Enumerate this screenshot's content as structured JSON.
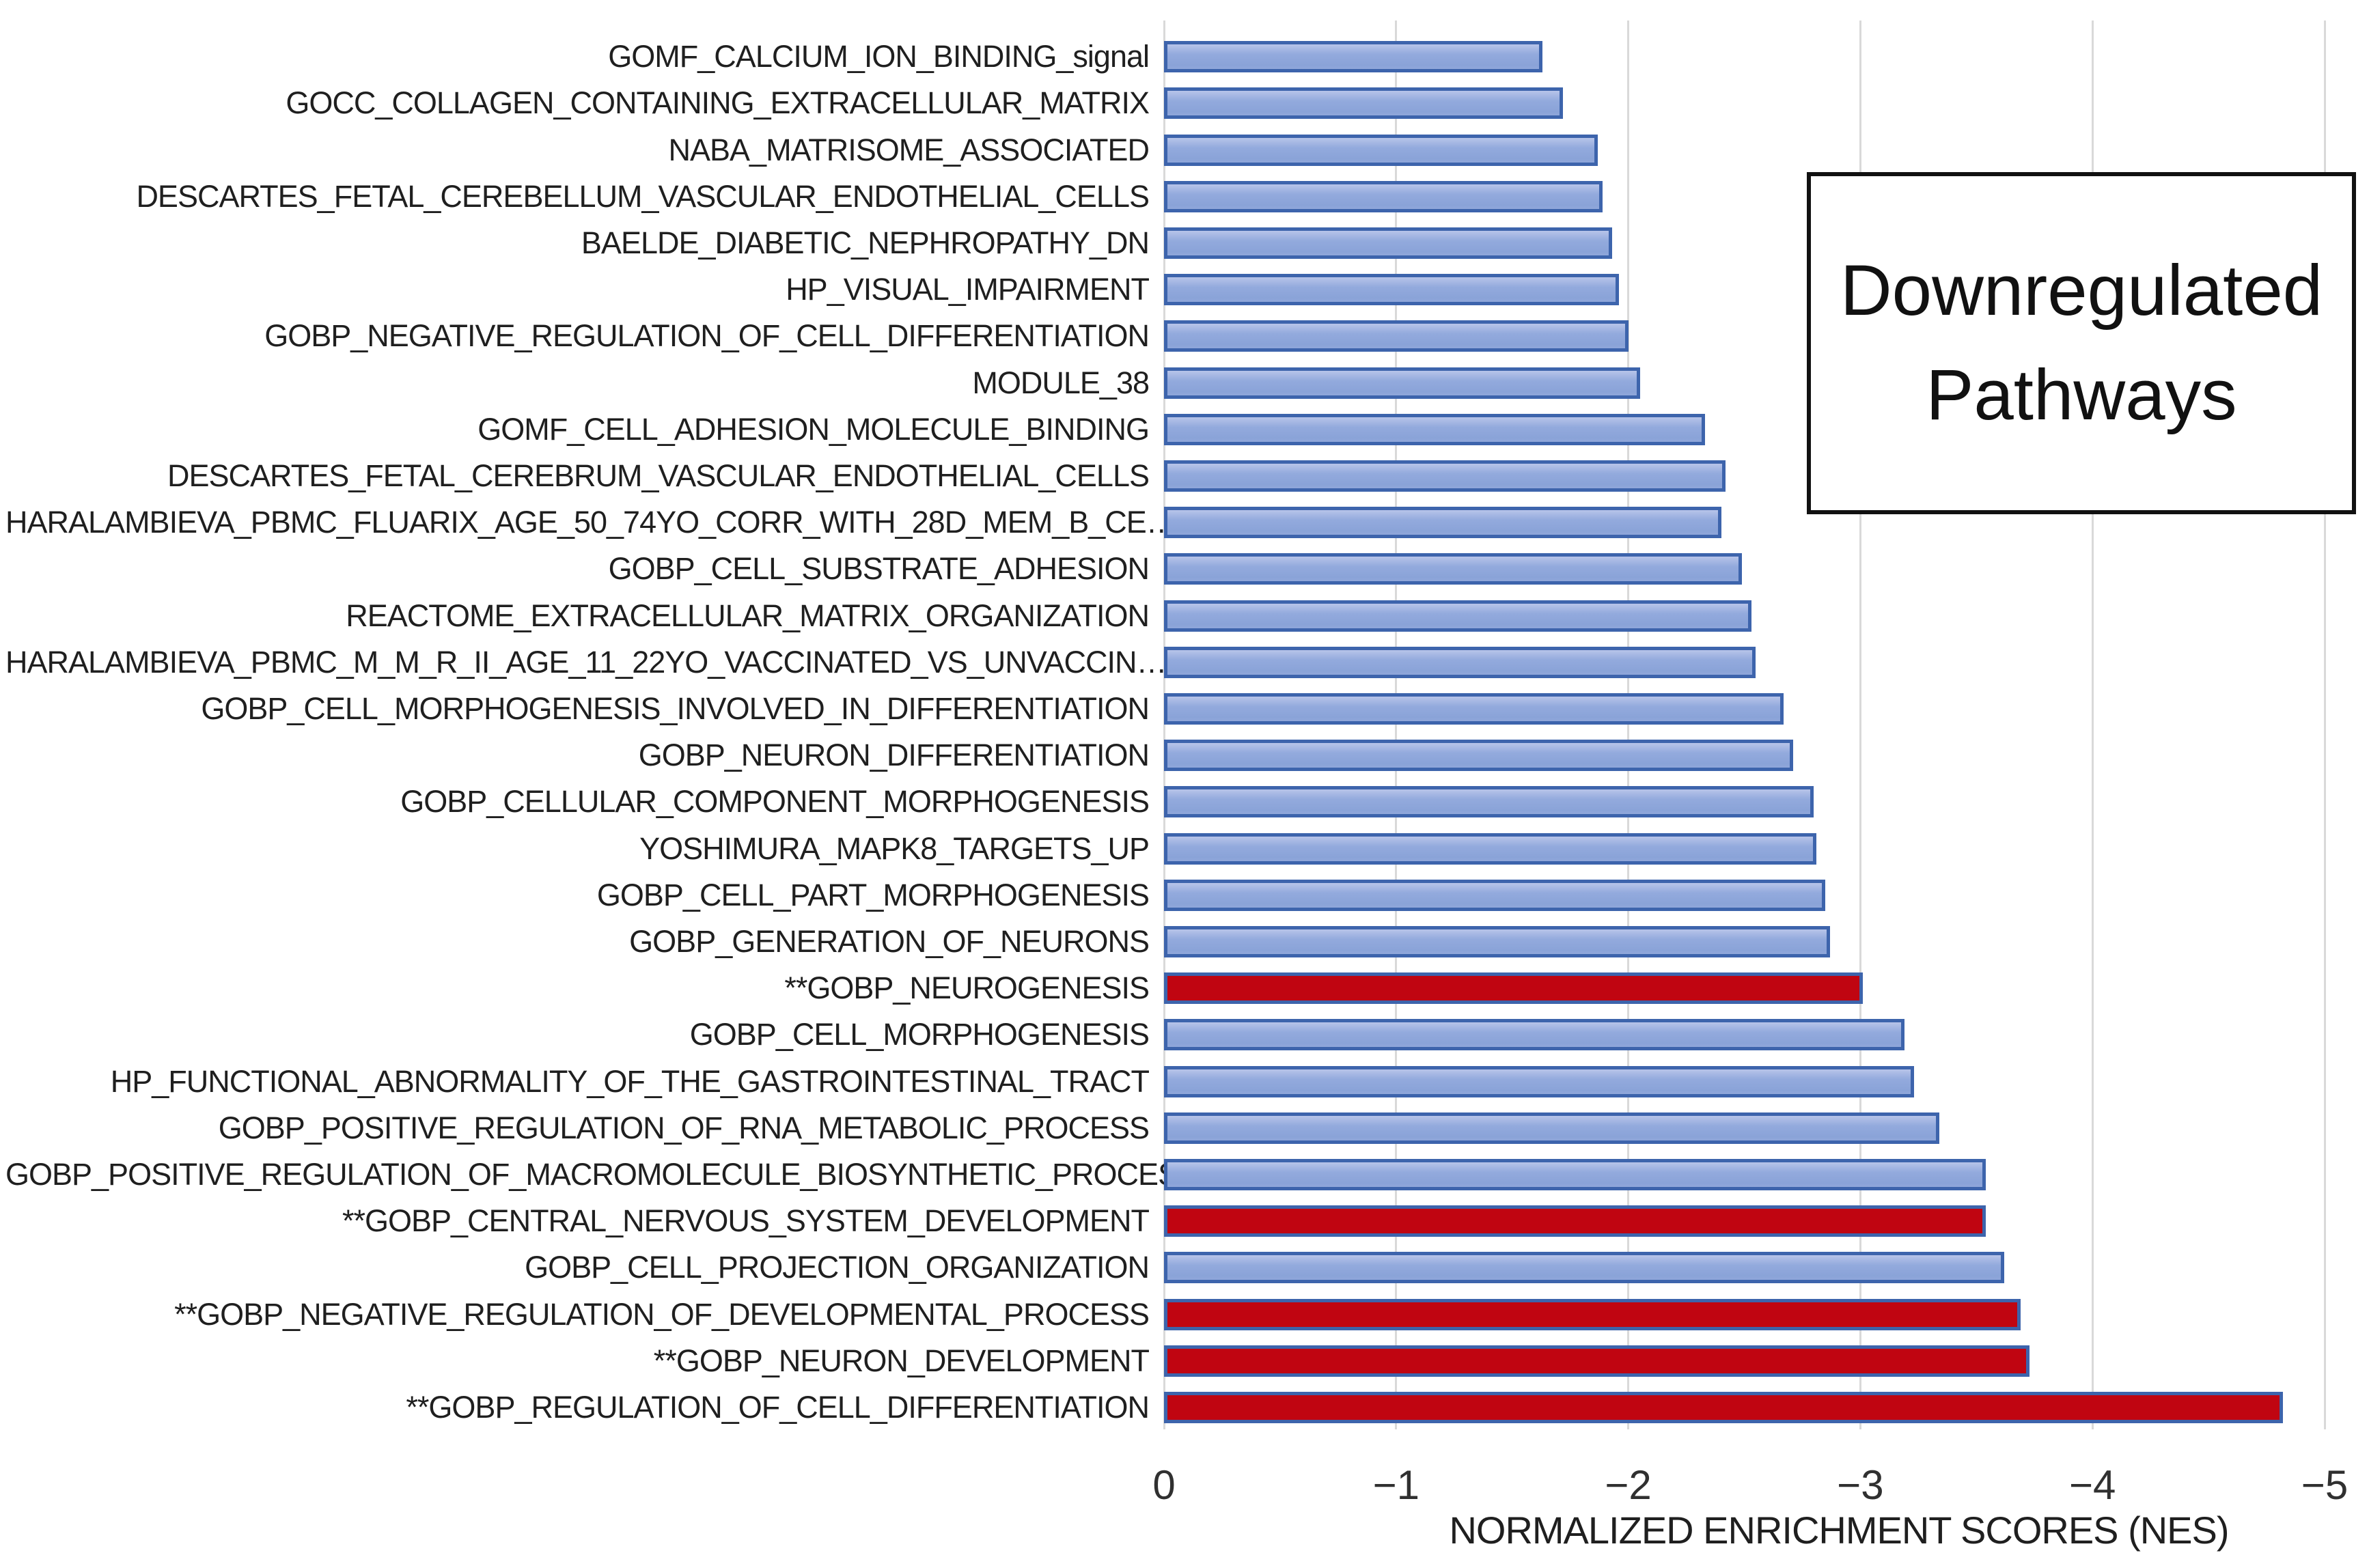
{
  "chart": {
    "annotation_label": "Downregulated Pathways",
    "axis_title": "NORMALIZED ENRICHMENT SCORES (NES)"
  },
  "chart_data": {
    "type": "bar",
    "orientation": "horizontal",
    "title": "Downregulated Pathways",
    "xlabel": "NORMALIZED ENRICHMENT SCORES (NES)",
    "ylabel": "",
    "xlim": [
      0,
      -5
    ],
    "x_axis_reversed": true,
    "grid": true,
    "x_tick_labels": [
      "0",
      "−1",
      "−2",
      "−3",
      "−4",
      "−5"
    ],
    "x_tick_values": [
      0,
      -1,
      -2,
      -3,
      -4,
      -5
    ],
    "legend": "none",
    "significance_note": "** = red highlighted pathways",
    "categories": [
      "GOMF_CALCIUM_ION_BINDING_signal",
      "GOCC_COLLAGEN_CONTAINING_EXTRACELLULAR_MATRIX",
      "NABA_MATRISOME_ASSOCIATED",
      "DESCARTES_FETAL_CEREBELLUM_VASCULAR_ENDOTHELIAL_CELLS",
      "BAELDE_DIABETIC_NEPHROPATHY_DN",
      "HP_VISUAL_IMPAIRMENT",
      "GOBP_NEGATIVE_REGULATION_OF_CELL_DIFFERENTIATION",
      "MODULE_38",
      "GOMF_CELL_ADHESION_MOLECULE_BINDING",
      "DESCARTES_FETAL_CEREBRUM_VASCULAR_ENDOTHELIAL_CELLS",
      "HARALAMBIEVA_PBMC_FLUARIX_AGE_50_74YO_CORR_WITH_28D_MEM_B_CE…",
      "GOBP_CELL_SUBSTRATE_ADHESION",
      "REACTOME_EXTRACELLULAR_MATRIX_ORGANIZATION",
      "HARALAMBIEVA_PBMC_M_M_R_II_AGE_11_22YO_VACCINATED_VS_UNVACCIN…",
      "GOBP_CELL_MORPHOGENESIS_INVOLVED_IN_DIFFERENTIATION",
      "GOBP_NEURON_DIFFERENTIATION",
      "GOBP_CELLULAR_COMPONENT_MORPHOGENESIS",
      "YOSHIMURA_MAPK8_TARGETS_UP",
      "GOBP_CELL_PART_MORPHOGENESIS",
      "GOBP_GENERATION_OF_NEURONS",
      "**GOBP_NEUROGENESIS",
      "GOBP_CELL_MORPHOGENESIS",
      "HP_FUNCTIONAL_ABNORMALITY_OF_THE_GASTROINTESTINAL_TRACT",
      "GOBP_POSITIVE_REGULATION_OF_RNA_METABOLIC_PROCESS",
      "GOBP_POSITIVE_REGULATION_OF_MACROMOLECULE_BIOSYNTHETIC_PROCESS",
      "**GOBP_CENTRAL_NERVOUS_SYSTEM_DEVELOPMENT",
      "GOBP_CELL_PROJECTION_ORGANIZATION",
      "**GOBP_NEGATIVE_REGULATION_OF_DEVELOPMENTAL_PROCESS",
      "**GOBP_NEURON_DEVELOPMENT",
      "**GOBP_REGULATION_OF_CELL_DIFFERENTIATION"
    ],
    "values": [
      -1.63,
      -1.72,
      -1.87,
      -1.89,
      -1.93,
      -1.96,
      -2.0,
      -2.05,
      -2.33,
      -2.42,
      -2.4,
      -2.49,
      -2.53,
      -2.55,
      -2.67,
      -2.71,
      -2.8,
      -2.81,
      -2.85,
      -2.87,
      -3.01,
      -3.19,
      -3.23,
      -3.34,
      -3.54,
      -3.54,
      -3.62,
      -3.69,
      -3.73,
      -4.82
    ],
    "highlighted_red": [
      false,
      false,
      false,
      false,
      false,
      false,
      false,
      false,
      false,
      false,
      false,
      false,
      false,
      false,
      false,
      false,
      false,
      false,
      false,
      false,
      true,
      false,
      false,
      false,
      false,
      true,
      false,
      true,
      true,
      true
    ],
    "colors": {
      "bar_fill_blue": "#93aadd",
      "bar_fill_blue_light": "#b7c4e9",
      "bar_fill_red": "#c00511",
      "bar_border": "#3d64ac",
      "gridline": "#d9d9d9",
      "text": "#1f1f1f",
      "annotation_border": "#111111"
    }
  }
}
